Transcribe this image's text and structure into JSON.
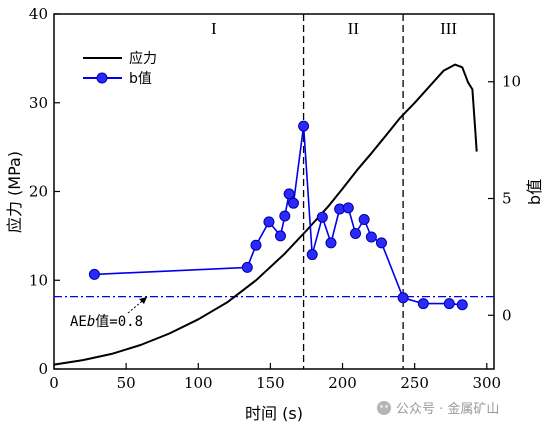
{
  "chart_data": {
    "type": "line",
    "xlabel": "时间 (s)",
    "ylabel_left": "应力 (MPa)",
    "ylabel_right": "b值",
    "x_ticks": [
      0,
      50,
      100,
      150,
      200,
      250,
      300
    ],
    "y_left_ticks": [
      0,
      10,
      20,
      30,
      40
    ],
    "y_right_ticks": [
      0,
      5,
      10
    ],
    "xlim": [
      0,
      305
    ],
    "ylim_left": [
      0,
      40
    ],
    "ylim_right": [
      -2.3,
      12.9
    ],
    "regions": [
      {
        "label": "I",
        "x_start": 0,
        "x_end": 173
      },
      {
        "label": "II",
        "x_start": 173,
        "x_end": 242
      },
      {
        "label": "III",
        "x_start": 242,
        "x_end": 305
      }
    ],
    "boundaries": [
      173,
      242
    ],
    "series": [
      {
        "name": "应力",
        "axis": "left",
        "color": "#000000",
        "marker": "none",
        "x": [
          0,
          20,
          40,
          60,
          80,
          100,
          120,
          140,
          160,
          175,
          190,
          200,
          210,
          220,
          230,
          240,
          250,
          260,
          270,
          278,
          283,
          287,
          290,
          292,
          293
        ],
        "y": [
          0.5,
          1.0,
          1.7,
          2.7,
          4.0,
          5.6,
          7.5,
          10.0,
          13.0,
          15.6,
          18.3,
          20.3,
          22.4,
          24.3,
          26.3,
          28.3,
          30.0,
          31.8,
          33.6,
          34.3,
          34.0,
          32.3,
          31.5,
          27.0,
          24.5
        ]
      },
      {
        "name": "b值",
        "axis": "right",
        "color": "#0000ee",
        "marker": "circle",
        "x": [
          28,
          134,
          140,
          149,
          157,
          160,
          163,
          166,
          173,
          179,
          186,
          192,
          198,
          204,
          209,
          215,
          220,
          227,
          242,
          256,
          274,
          283
        ],
        "y": [
          1.75,
          2.05,
          3.0,
          4.0,
          3.4,
          4.25,
          5.2,
          4.8,
          8.1,
          2.6,
          4.2,
          3.1,
          4.55,
          4.6,
          3.5,
          4.1,
          3.35,
          3.1,
          0.75,
          0.5,
          0.5,
          0.45
        ]
      }
    ],
    "reference_line": {
      "value": 0.8,
      "axis": "right",
      "color": "#0000ee",
      "style": "dash-dot",
      "label_prefix": "AE",
      "label_italic": "b",
      "label_suffix": "值=0.8"
    },
    "legend": {
      "position": "top-left"
    }
  },
  "watermark": "公众号 · 金属矿山"
}
